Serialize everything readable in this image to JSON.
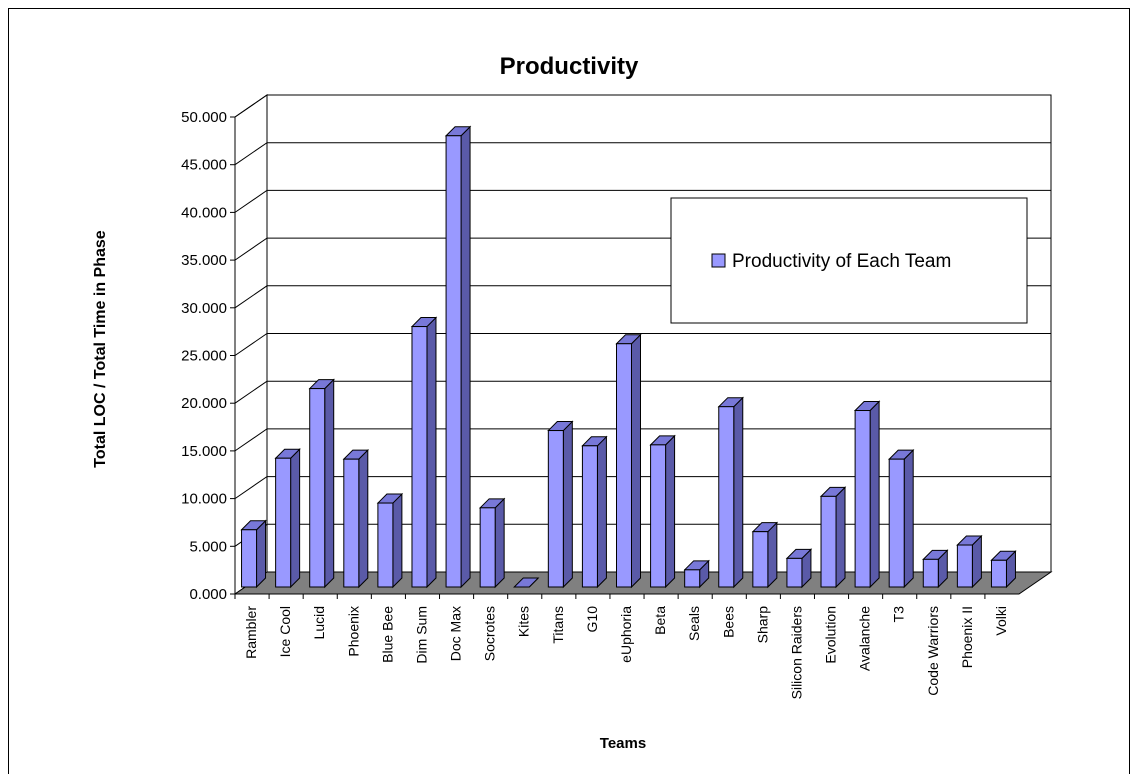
{
  "chart_data": {
    "type": "bar",
    "title": "Productivity",
    "xlabel": "Teams",
    "ylabel": "Total LOC / Total Time in Phase",
    "ylim": [
      0,
      50
    ],
    "ytick_step": 5,
    "ytick_labels": [
      "0.000",
      "5.000",
      "10.000",
      "15.000",
      "20.000",
      "25.000",
      "30.000",
      "35.000",
      "40.000",
      "45.000",
      "50.000"
    ],
    "grid": true,
    "legend_position": "right",
    "categories": [
      "Rambler",
      "Ice Cool",
      "Lucid",
      "Phoenix",
      "Blue Bee",
      "Dim Sum",
      "Doc Max",
      "Socrotes",
      "Kites",
      "Titans",
      "G10",
      "eUphoria",
      "Beta",
      "Seals",
      "Bees",
      "Sharp",
      "Silicon Raiders",
      "Evolution",
      "Avalanche",
      "T3",
      "Code Warriors",
      "Phoenix II",
      "Volki"
    ],
    "series": [
      {
        "name": "Productivity of Each Team",
        "values": [
          6.0,
          13.5,
          20.8,
          13.4,
          8.8,
          27.3,
          47.3,
          8.3,
          0.0,
          16.4,
          14.8,
          25.5,
          14.9,
          1.8,
          18.9,
          5.8,
          3.0,
          9.5,
          18.5,
          13.4,
          2.9,
          4.4,
          2.8
        ]
      }
    ],
    "colors": {
      "bar_front": "#9999ff",
      "bar_side": "#5a5aa8",
      "bar_top": "#7878d8",
      "floor": "#808080",
      "grid": "#000000"
    }
  }
}
